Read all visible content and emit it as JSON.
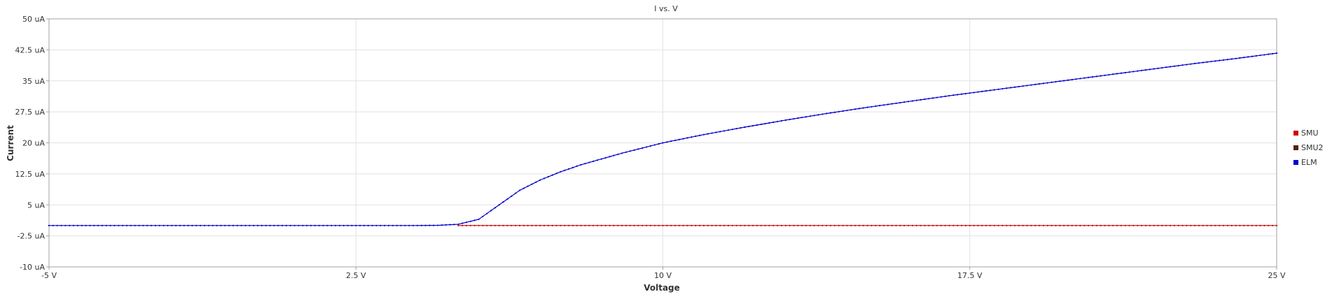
{
  "chart_data": {
    "type": "scatter",
    "title": "I vs. V",
    "xlabel": "Voltage",
    "ylabel": "Current",
    "xlim": [
      -5,
      25
    ],
    "ylim": [
      -10,
      50
    ],
    "x_ticks": [
      -5,
      2.5,
      10,
      17.5,
      25
    ],
    "x_tick_labels": [
      "-5 V",
      "2.5 V",
      "10 V",
      "17.5 V",
      "25 V"
    ],
    "y_ticks": [
      -10,
      -2.5,
      5,
      12.5,
      20,
      27.5,
      35,
      42.5,
      50
    ],
    "y_tick_labels": [
      "-10 uA",
      "-2.5 uA",
      "5 uA",
      "12.5 uA",
      "20 uA",
      "27.5 uA",
      "35 uA",
      "42.5 uA",
      "50 uA"
    ],
    "grid": true,
    "legend_position": "right",
    "legend": [
      {
        "name": "SMU",
        "color": "#cc0000"
      },
      {
        "name": "SMU2",
        "color": "#552200"
      },
      {
        "name": "ELM",
        "color": "#0000cc"
      }
    ],
    "series": [
      {
        "name": "ELM",
        "color": "#0000cc",
        "x": [
          -5,
          -2.5,
          0,
          2.5,
          4,
          4.5,
          5,
          5.5,
          6,
          6.5,
          7,
          7.5,
          8,
          9,
          10,
          11,
          12,
          13,
          14,
          15,
          16,
          17,
          18,
          19,
          20,
          21,
          22,
          23,
          24,
          25
        ],
        "y": [
          0,
          0,
          0,
          0,
          0,
          0.05,
          0.3,
          1.5,
          5,
          8.5,
          11,
          13,
          14.7,
          17.5,
          20,
          22,
          23.8,
          25.5,
          27.1,
          28.6,
          30,
          31.4,
          32.7,
          34,
          35.3,
          36.6,
          37.9,
          39.2,
          40.4,
          41.7
        ]
      },
      {
        "name": "SMU",
        "color": "#cc0000",
        "x": [
          5,
          25
        ],
        "y": [
          0,
          0
        ]
      }
    ]
  }
}
